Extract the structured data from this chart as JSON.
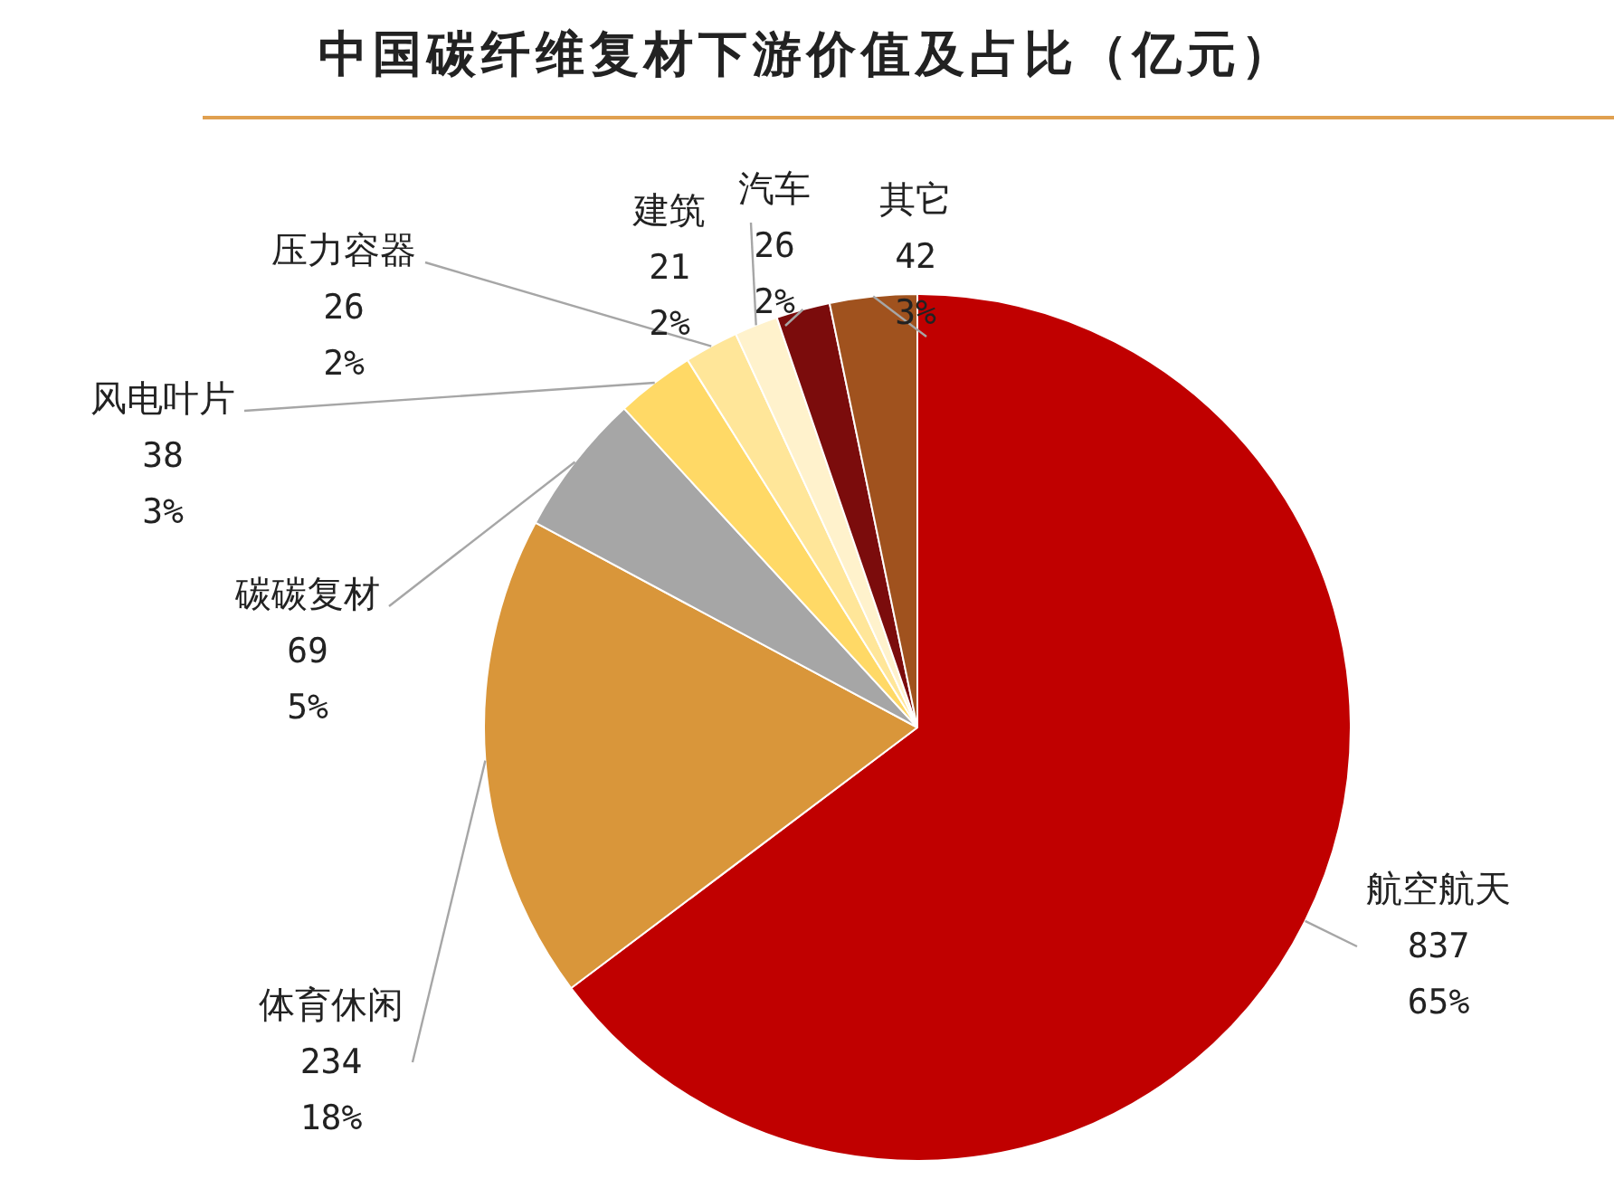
{
  "chart_data": {
    "type": "pie",
    "title": "中国碳纤维复材下游价值及占比（亿元）",
    "categories": [
      "航空航天",
      "体育休闲",
      "碳碳复材",
      "风电叶片",
      "压力容器",
      "建筑",
      "汽车",
      "其它"
    ],
    "values": [
      837,
      234,
      69,
      38,
      26,
      21,
      26,
      42
    ],
    "colors": [
      "#c00000",
      "#d9963a",
      "#a6a6a6",
      "#ffd966",
      "#ffe699",
      "#fff2cc",
      "#7b0c0c",
      "#a0521e"
    ],
    "value_labels": [
      "837\n65%",
      "234\n18%",
      "69\n5%",
      "38\n3%",
      "26\n2%",
      "21\n2%",
      "26\n2%",
      "42\n3%"
    ],
    "legend": false
  }
}
